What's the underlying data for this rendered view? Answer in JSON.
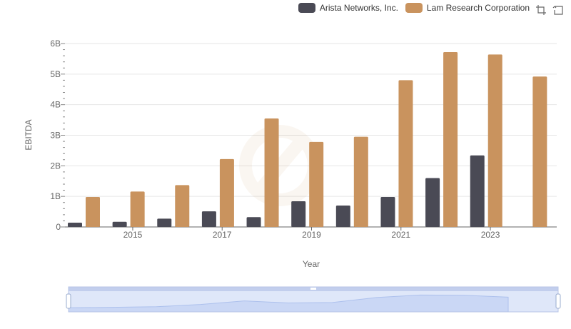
{
  "legend": {
    "items": [
      {
        "label": "Arista Networks, Inc.",
        "color": "#4a4a55"
      },
      {
        "label": "Lam Research Corporation",
        "color": "#c9935e"
      }
    ]
  },
  "toolbox": {
    "icons": [
      "zoom-icon",
      "restore-icon"
    ]
  },
  "chart_data": {
    "type": "bar",
    "categories": [
      "2014",
      "2015",
      "2016",
      "2017",
      "2018",
      "2019",
      "2020",
      "2021",
      "2022",
      "2023",
      "2024"
    ],
    "x_tick_labels": [
      "2015",
      "2017",
      "2019",
      "2021",
      "2023"
    ],
    "series": [
      {
        "name": "Arista Networks, Inc.",
        "color": "#4a4a55",
        "values": [
          0.14,
          0.17,
          0.27,
          0.51,
          0.32,
          0.84,
          0.7,
          0.98,
          1.6,
          2.34,
          null
        ]
      },
      {
        "name": "Lam Research Corporation",
        "color": "#c9935e",
        "values": [
          0.98,
          1.16,
          1.37,
          2.22,
          3.55,
          2.78,
          2.95,
          4.8,
          5.72,
          5.64,
          4.92
        ]
      }
    ],
    "xlabel": "Year",
    "ylabel": "EBITDA",
    "ylim": [
      0,
      6
    ],
    "y_tick_values": [
      0,
      1,
      2,
      3,
      4,
      5,
      6
    ],
    "y_tick_labels": [
      "0",
      "1B",
      "2B",
      "3B",
      "4B",
      "5B",
      "6B"
    ],
    "grid": true,
    "legend_position": "top-right",
    "data_zoom": true
  }
}
